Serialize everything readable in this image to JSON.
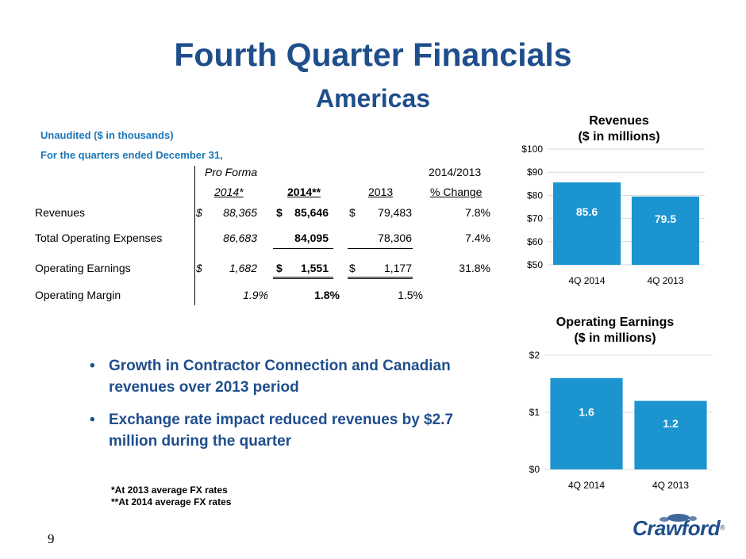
{
  "title": "Fourth Quarter Financials",
  "subtitle": "Americas",
  "notes": {
    "unaudited": "Unaudited ($ in thousands)",
    "period": "For the quarters ended December 31,"
  },
  "table": {
    "header_top": {
      "proforma": "Pro Forma",
      "comparison": "2014/2013"
    },
    "header_cols": {
      "col1": "2014*",
      "col2": "2014**",
      "col3": "2013",
      "col4": "% Change"
    },
    "currency_symbol": "$",
    "rows": [
      {
        "label": "Revenues",
        "v1": "88,365",
        "v2": "85,646",
        "v3": "79,483",
        "v4": "7.8%"
      },
      {
        "label": "Total Operating Expenses",
        "v1": "86,683",
        "v2": "84,095",
        "v3": "78,306",
        "v4": "7.4%"
      },
      {
        "label": "Operating Earnings",
        "v1": "1,682",
        "v2": "1,551",
        "v3": "1,177",
        "v4": "31.8%"
      },
      {
        "label": "Operating Margin",
        "v1": "1.9%",
        "v2": "1.8%",
        "v3": "1.5%",
        "v4": ""
      }
    ]
  },
  "bullets": [
    "Growth in Contractor Connection and Canadian revenues over 2013 period",
    "Exchange rate impact reduced revenues by $2.7 million during the quarter"
  ],
  "bullet_glyph": "•",
  "footnotes": [
    "*At 2013 average FX rates",
    "**At 2014 average FX rates"
  ],
  "page_number": "9",
  "logo": {
    "text": "Crawford",
    "mark": "®"
  },
  "colors": {
    "brand": "#1f4e8c",
    "accent": "#1b76b8",
    "bar": "#1b94d0",
    "grid": "#d9d9d9"
  },
  "chart_data": [
    {
      "type": "bar",
      "title": "Revenues",
      "subtitle": "($ in millions)",
      "categories": [
        "4Q 2014",
        "4Q 2013"
      ],
      "values": [
        85.6,
        79.5
      ],
      "data_labels": [
        "85.6",
        "79.5"
      ],
      "ylim": [
        50,
        100
      ],
      "yticks": [
        50,
        60,
        70,
        80,
        90,
        100
      ],
      "ytick_labels": [
        "$50",
        "$60",
        "$70",
        "$80",
        "$90",
        "$100"
      ],
      "grid": true
    },
    {
      "type": "bar",
      "title": "Operating Earnings",
      "subtitle": "($ in millions)",
      "categories": [
        "4Q 2014",
        "4Q 2013"
      ],
      "values": [
        1.6,
        1.2
      ],
      "data_labels": [
        "1.6",
        "1.2"
      ],
      "ylim": [
        0,
        2
      ],
      "yticks": [
        0,
        1,
        2
      ],
      "ytick_labels": [
        "$0",
        "$1",
        "$2"
      ],
      "grid": true
    }
  ]
}
